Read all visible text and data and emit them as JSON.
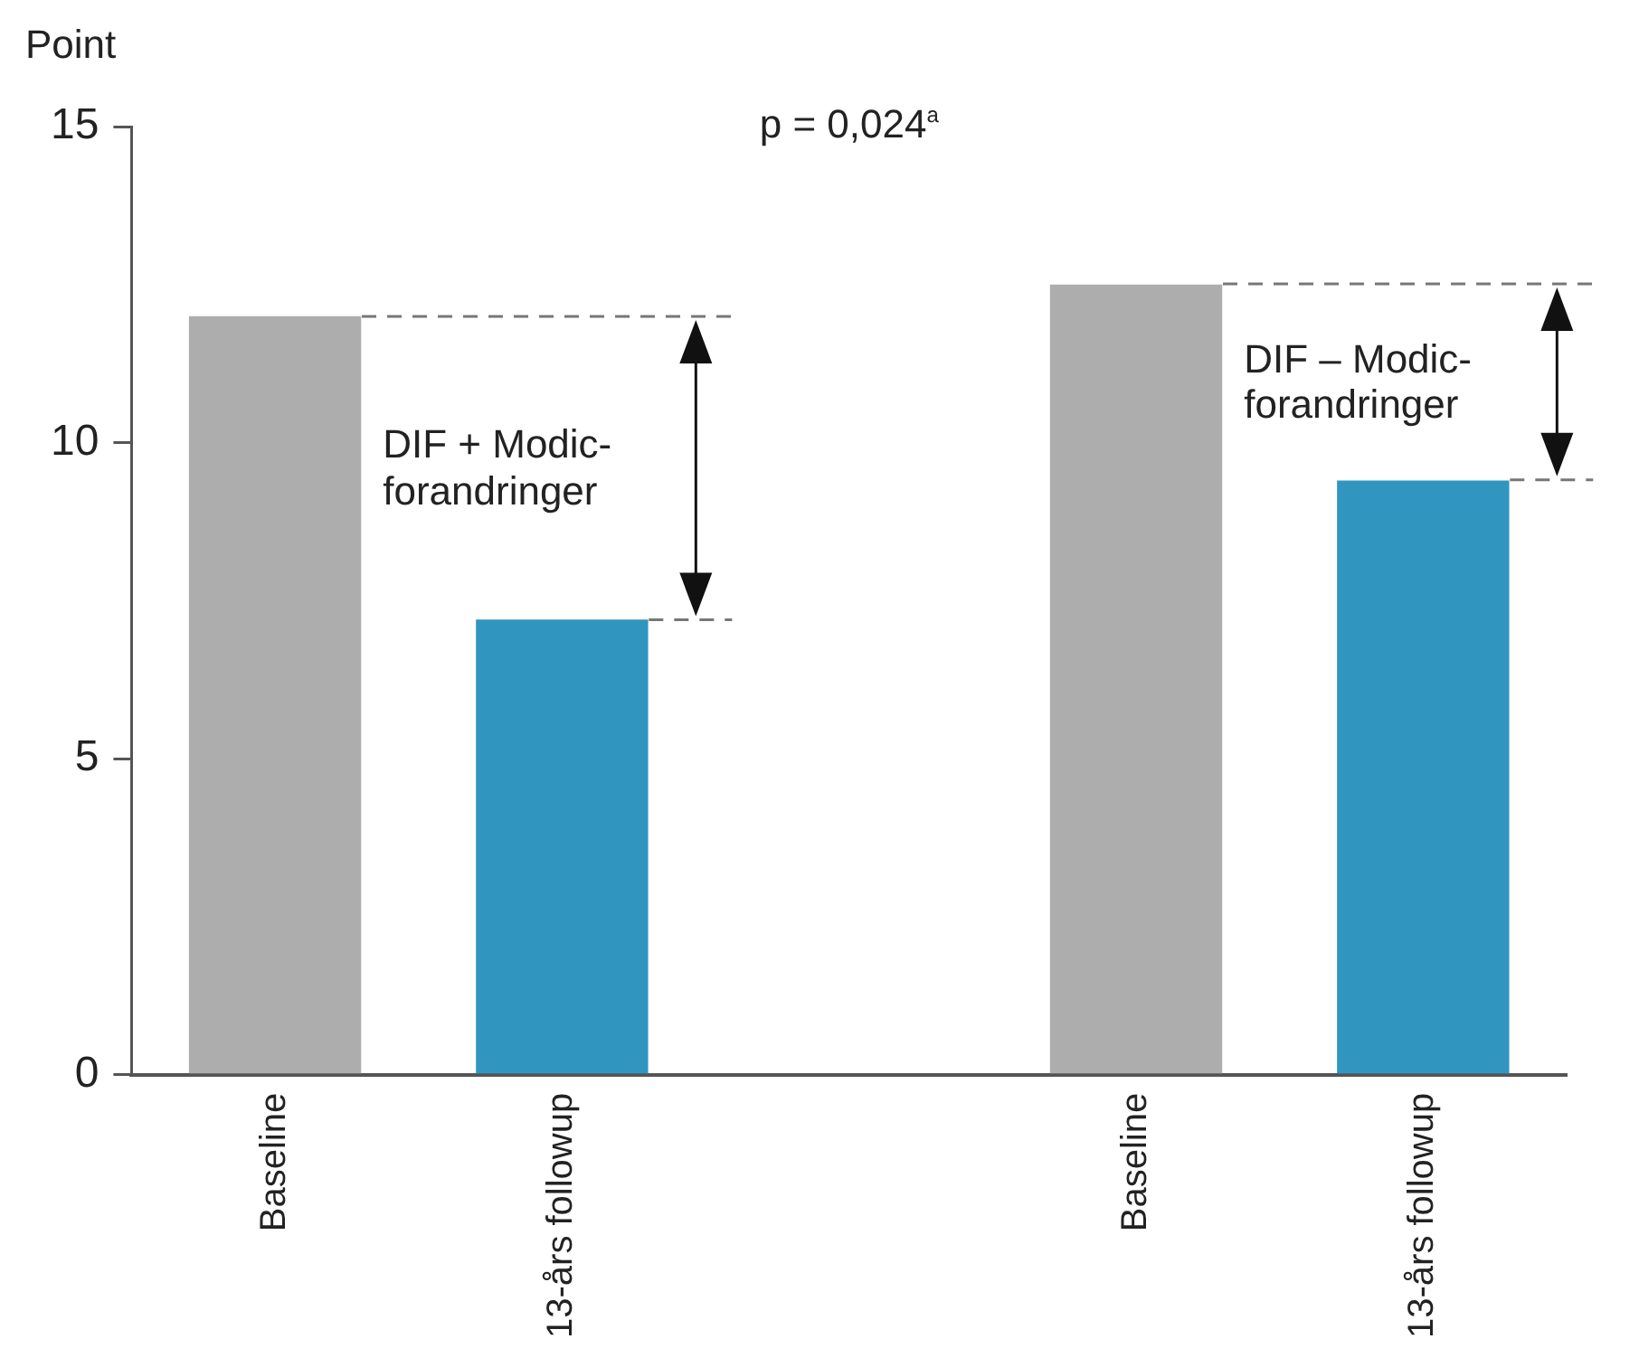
{
  "chart_data": {
    "type": "bar",
    "ylabel": "Point",
    "categories": [
      "Baseline",
      "13-års followup",
      null,
      "Baseline",
      "13-års followup"
    ],
    "values": [
      12.0,
      7.2,
      null,
      12.5,
      9.4
    ],
    "colors": [
      "#adadad",
      "#3096c0",
      null,
      "#adadad",
      "#3096c0"
    ],
    "ylim": [
      0,
      15
    ],
    "yticks": [
      0,
      5,
      10,
      15
    ],
    "grid": false,
    "legend": false,
    "annotations": [
      "p = 0,024$^{a}$",
      "DIF + Modic-forandringer",
      "DIF – Modic-forandringer"
    ]
  }
}
